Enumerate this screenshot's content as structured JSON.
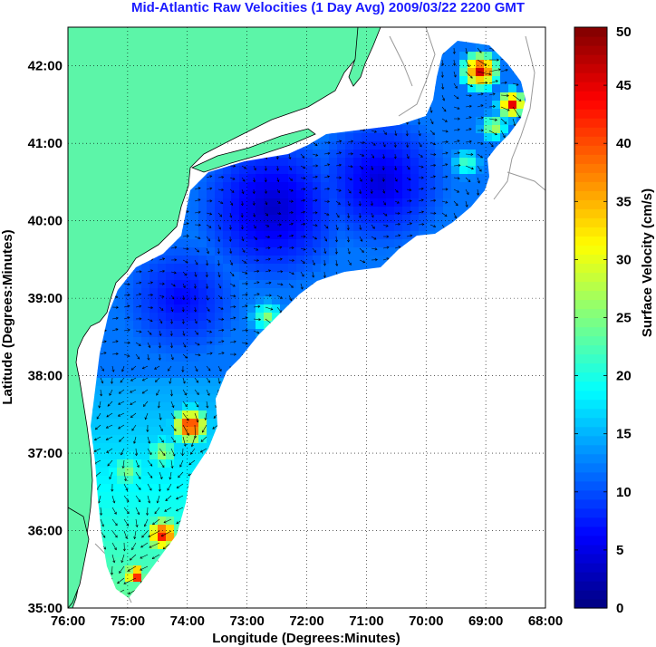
{
  "title": "Mid-Atlantic Raw Velocities (1 Day Avg) 2009/03/22 2200 GMT",
  "map": {
    "xlabel": "Longitude (Degrees:Minutes)",
    "ylabel": "Latitude (Degrees:Minutes)",
    "x_ticks": [
      {
        "value": -76,
        "label": "76:00"
      },
      {
        "value": -75,
        "label": "75:00"
      },
      {
        "value": -74,
        "label": "74:00"
      },
      {
        "value": -73,
        "label": "73:00"
      },
      {
        "value": -72,
        "label": "72:00"
      },
      {
        "value": -71,
        "label": "71:00"
      },
      {
        "value": -70,
        "label": "70:00"
      },
      {
        "value": -69,
        "label": "69:00"
      },
      {
        "value": -68,
        "label": "68:00"
      }
    ],
    "y_ticks": [
      {
        "value": 35,
        "label": "35:00"
      },
      {
        "value": 36,
        "label": "36:00"
      },
      {
        "value": 37,
        "label": "37:00"
      },
      {
        "value": 38,
        "label": "38:00"
      },
      {
        "value": 39,
        "label": "39:00"
      },
      {
        "value": 40,
        "label": "40:00"
      },
      {
        "value": 41,
        "label": "41:00"
      },
      {
        "value": 42,
        "label": "42:00"
      }
    ],
    "lon_range": [
      -76,
      -68
    ],
    "lat_range": [
      35,
      42.5
    ],
    "grid": true,
    "land_color": "#5cf5a8",
    "contour_color": "#999999",
    "vector_color": "#000000"
  },
  "colorbar": {
    "label": "Surface Velocity (cm/s)",
    "range": [
      0,
      50
    ],
    "ticks": [
      {
        "value": 0,
        "label": "0"
      },
      {
        "value": 5,
        "label": "5"
      },
      {
        "value": 10,
        "label": "10"
      },
      {
        "value": 15,
        "label": "15"
      },
      {
        "value": 20,
        "label": "20"
      },
      {
        "value": 25,
        "label": "25"
      },
      {
        "value": 30,
        "label": "30"
      },
      {
        "value": 35,
        "label": "35"
      },
      {
        "value": 40,
        "label": "40"
      },
      {
        "value": 45,
        "label": "45"
      },
      {
        "value": 50,
        "label": "50"
      }
    ],
    "colormap": "jet"
  }
}
